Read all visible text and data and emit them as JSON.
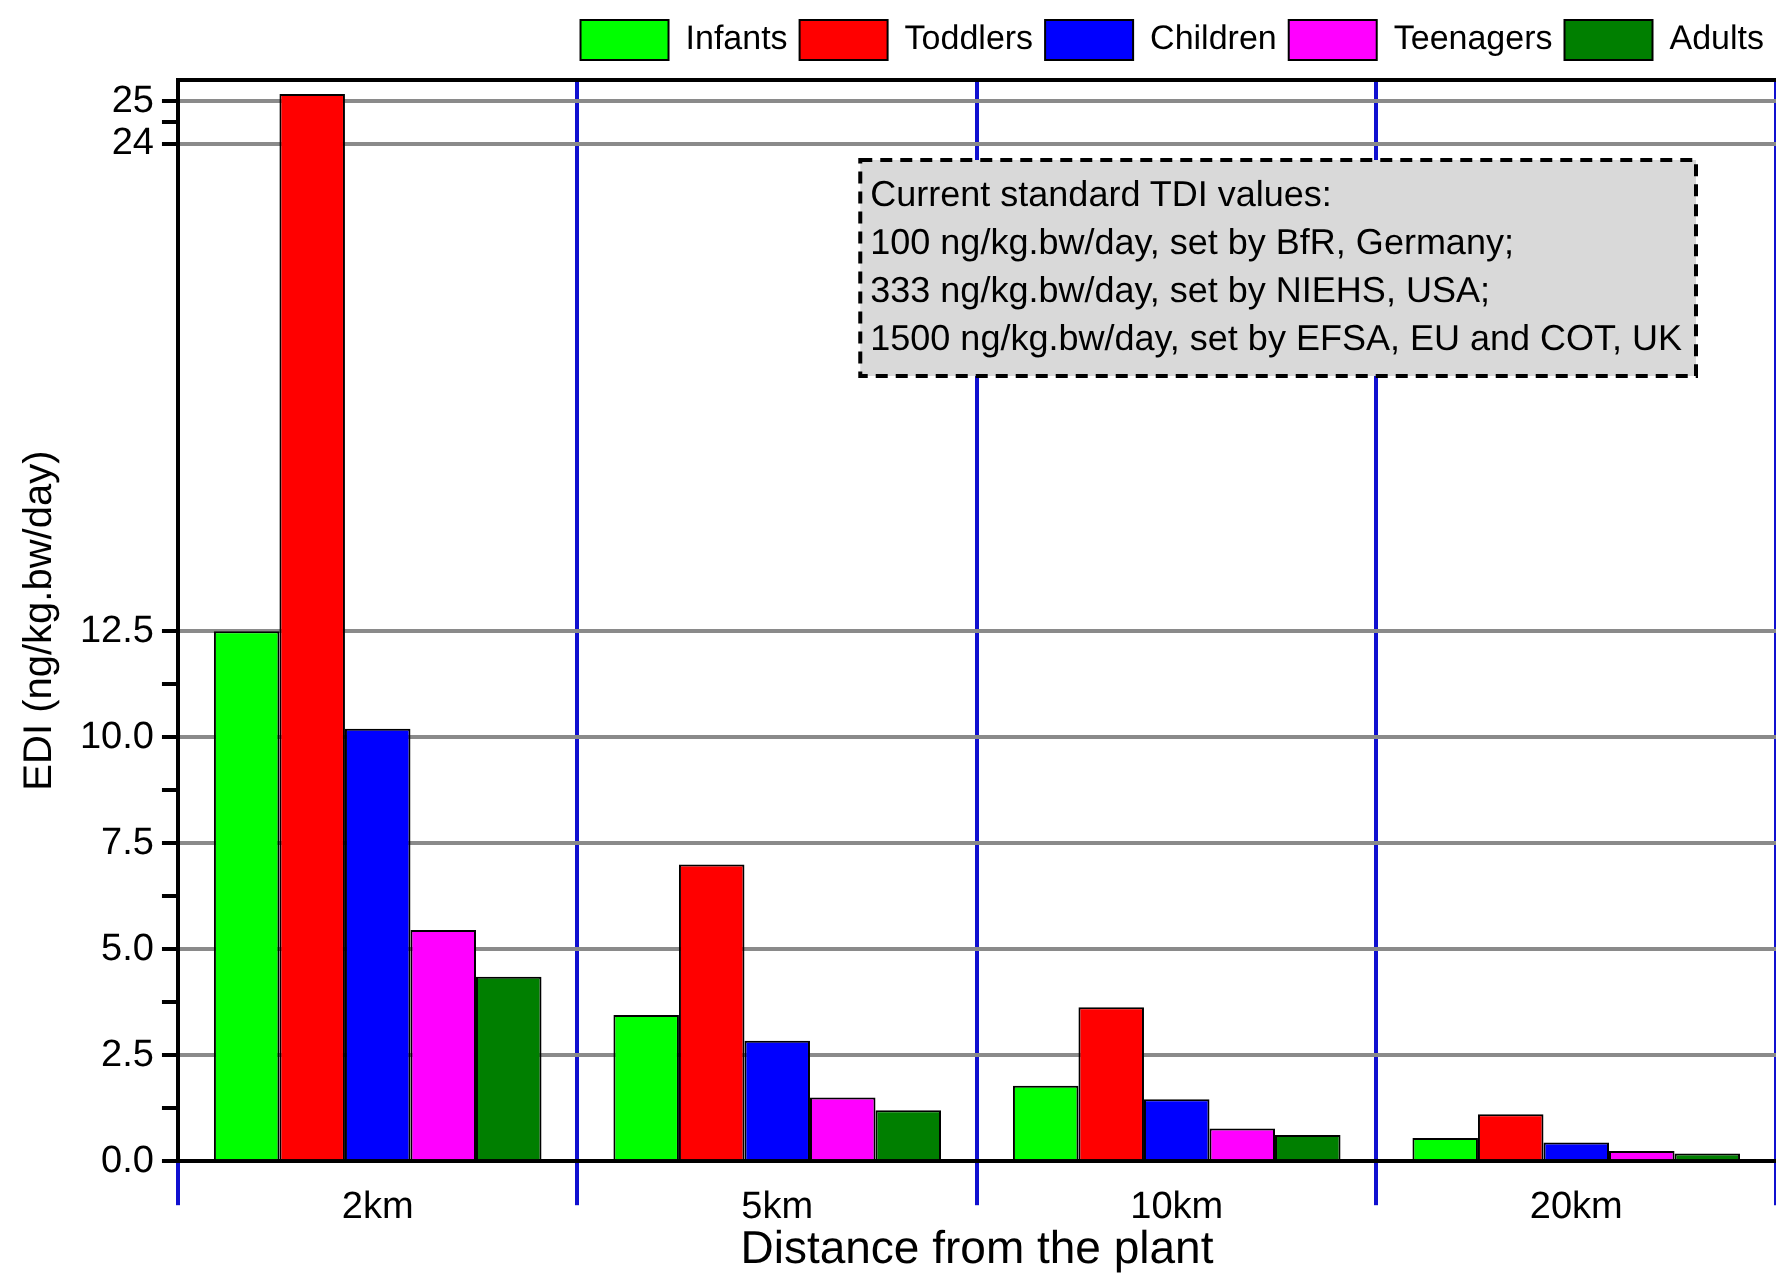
{
  "chart_data": {
    "type": "bar",
    "xlabel": "Distance from the plant",
    "ylabel": "EDI (ng/kg.bw/day)",
    "categories": [
      "2km",
      "5km",
      "10km",
      "20km"
    ],
    "series": [
      {
        "name": "Infants",
        "color": "#00ff00",
        "values": [
          12.5,
          3.45,
          1.78,
          0.55
        ]
      },
      {
        "name": "Toddlers",
        "color": "#ff0000",
        "values": [
          25.17,
          7.0,
          3.63,
          1.11
        ]
      },
      {
        "name": "Children",
        "color": "#0000ff",
        "values": [
          10.2,
          2.84,
          1.46,
          0.44
        ]
      },
      {
        "name": "Teenagers",
        "color": "#ff00ff",
        "values": [
          5.45,
          1.5,
          0.77,
          0.24
        ]
      },
      {
        "name": "Adults",
        "color": "#007f00",
        "values": [
          4.35,
          1.2,
          0.62,
          0.18
        ]
      }
    ],
    "ylim": [
      0,
      25.5
    ],
    "yticks": [
      {
        "value": 0,
        "label": "0.0"
      },
      {
        "value": 1.25,
        "label": null
      },
      2.5,
      {
        "value": 3.75,
        "label": null
      },
      {
        "value": 5,
        "label": "5.0"
      },
      {
        "value": 6.25,
        "label": null
      },
      7.5,
      {
        "value": 8.75,
        "label": null
      },
      {
        "value": 10,
        "label": "10.0"
      },
      {
        "value": 11.25,
        "label": null
      },
      12.5,
      24,
      {
        "value": 24.5,
        "label": null
      },
      25
    ],
    "grid": true,
    "legend": "top",
    "annotations": [
      "Current standard TDI values:",
      "100 ng/kg.bw/day, set by BfR, Germany;",
      "333 ng/kg.bw/day, set by NIEHS, USA;",
      "1500 ng/kg.bw/day, set by EFSA, EU and COT, UK"
    ]
  }
}
